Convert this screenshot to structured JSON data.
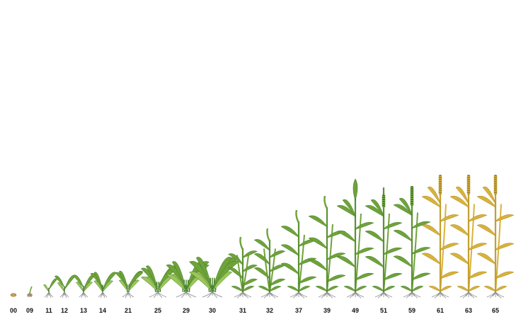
{
  "palette": {
    "green_leaf": "#6fa33a",
    "green_dark": "#3f7a24",
    "green_light": "#9cc65a",
    "yellow_leaf": "#d8b23a",
    "yellow_dark": "#a8861f",
    "root": "#8a8a8a",
    "seed": "#c9a04e",
    "label": "#111111"
  },
  "stages": [
    {
      "code": "00",
      "type": "seed",
      "height": 0,
      "leaves": 0,
      "tillers": 0,
      "head": "none",
      "color": "green"
    },
    {
      "code": "09",
      "type": "emerge",
      "height": 8,
      "leaves": 1,
      "tillers": 0,
      "head": "none",
      "color": "green"
    },
    {
      "code": "11",
      "type": "plant",
      "height": 18,
      "leaves": 2,
      "tillers": 0,
      "head": "none",
      "color": "green"
    },
    {
      "code": "12",
      "type": "plant",
      "height": 24,
      "leaves": 3,
      "tillers": 0,
      "head": "none",
      "color": "green"
    },
    {
      "code": "13",
      "type": "plant",
      "height": 26,
      "leaves": 4,
      "tillers": 0,
      "head": "none",
      "color": "green"
    },
    {
      "code": "14",
      "type": "plant",
      "height": 30,
      "leaves": 5,
      "tillers": 0,
      "head": "none",
      "color": "green"
    },
    {
      "code": "21",
      "type": "plant",
      "height": 32,
      "leaves": 6,
      "tillers": 1,
      "head": "none",
      "color": "green"
    },
    {
      "code": "25",
      "type": "plant",
      "height": 42,
      "leaves": 7,
      "tillers": 3,
      "head": "none",
      "color": "green"
    },
    {
      "code": "29",
      "type": "plant",
      "height": 50,
      "leaves": 8,
      "tillers": 4,
      "head": "none",
      "color": "green"
    },
    {
      "code": "30",
      "type": "plant",
      "height": 58,
      "leaves": 8,
      "tillers": 4,
      "head": "none",
      "color": "green"
    },
    {
      "code": "31",
      "type": "stem",
      "height": 70,
      "leaves": 6,
      "tillers": 2,
      "head": "none",
      "color": "green"
    },
    {
      "code": "32",
      "type": "stem",
      "height": 82,
      "leaves": 7,
      "tillers": 2,
      "head": "none",
      "color": "green"
    },
    {
      "code": "37",
      "type": "stem",
      "height": 108,
      "leaves": 7,
      "tillers": 1,
      "head": "none",
      "color": "green"
    },
    {
      "code": "39",
      "type": "stem",
      "height": 128,
      "leaves": 7,
      "tillers": 1,
      "head": "none",
      "color": "green"
    },
    {
      "code": "49",
      "type": "stem",
      "height": 148,
      "leaves": 7,
      "tillers": 1,
      "head": "boot",
      "color": "green"
    },
    {
      "code": "51",
      "type": "stem",
      "height": 148,
      "leaves": 7,
      "tillers": 1,
      "head": "partial",
      "color": "green"
    },
    {
      "code": "59",
      "type": "stem",
      "height": 150,
      "leaves": 7,
      "tillers": 1,
      "head": "full",
      "color": "green"
    },
    {
      "code": "61",
      "type": "stem",
      "height": 166,
      "leaves": 7,
      "tillers": 1,
      "head": "flower",
      "color": "yellow"
    },
    {
      "code": "63",
      "type": "stem",
      "height": 166,
      "leaves": 7,
      "tillers": 1,
      "head": "flower",
      "color": "yellow"
    },
    {
      "code": "65",
      "type": "stem",
      "height": 166,
      "leaves": 7,
      "tillers": 1,
      "head": "flower",
      "color": "yellow"
    }
  ]
}
